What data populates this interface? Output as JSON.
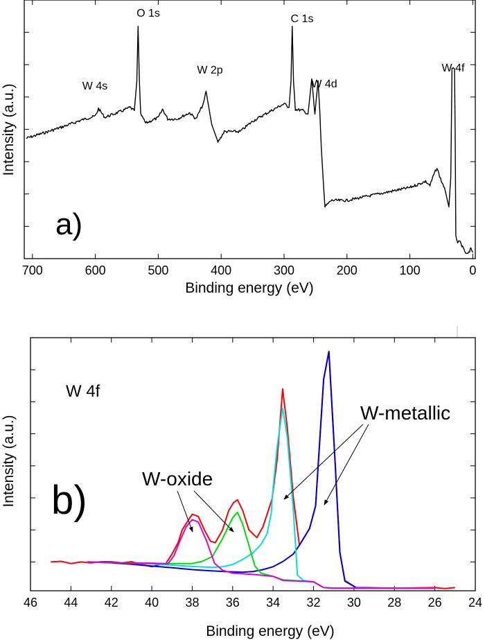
{
  "chart_data": [
    {
      "type": "line",
      "panel_label": "a)",
      "xlabel": "Binding energy (eV)",
      "ylabel": "Intensity (a.u.)",
      "xlim": [
        713,
        -4
      ],
      "x_reversed": true,
      "ylim": [
        0,
        8
      ],
      "xticks": [
        700,
        600,
        500,
        400,
        300,
        200,
        100,
        0
      ],
      "yticks_unlabeled": [
        1,
        2,
        3,
        4,
        5,
        6,
        7
      ],
      "grid": false,
      "line_color": "#000000",
      "annotations": [
        {
          "text": "O 1s",
          "x": 532
        },
        {
          "text": "C 1s",
          "x": 285
        },
        {
          "text": "W 2p",
          "x": 424
        },
        {
          "text": "W 4s",
          "x": 595
        },
        {
          "text": "W 4d",
          "x": 250
        },
        {
          "text": "W 4f",
          "x": 31
        }
      ],
      "series": [
        {
          "x": [
            710,
            680,
            650,
            620,
            600,
            595,
            585,
            560,
            545,
            538,
            534,
            532,
            530,
            528,
            520,
            500,
            493,
            485,
            470,
            450,
            440,
            428,
            424,
            415,
            405,
            395,
            370,
            350,
            320,
            300,
            292,
            289,
            287,
            285,
            282,
            270,
            262,
            256,
            251,
            246,
            243,
            241,
            238,
            235,
            225,
            200,
            150,
            100,
            75,
            68,
            62,
            57,
            50,
            45,
            38,
            35,
            33,
            29,
            28,
            27,
            24,
            20,
            15,
            10,
            5,
            3,
            0
          ],
          "y": [
            3.72,
            3.9,
            4.09,
            4.3,
            4.41,
            4.64,
            4.37,
            4.55,
            4.68,
            4.58,
            5.5,
            7.19,
            5.5,
            4.47,
            4.19,
            4.36,
            4.62,
            4.32,
            4.32,
            4.51,
            4.32,
            4.8,
            5.18,
            4.15,
            3.61,
            3.93,
            3.93,
            4.25,
            4.58,
            4.79,
            4.68,
            5.5,
            7.19,
            5.5,
            4.62,
            4.58,
            4.47,
            5.56,
            4.47,
            5.5,
            4.5,
            3.5,
            2.5,
            1.6,
            1.8,
            1.8,
            2.0,
            2.2,
            2.39,
            2.26,
            2.6,
            2.8,
            2.4,
            2.2,
            1.6,
            2.5,
            5.86,
            5.86,
            4.0,
            0.73,
            0.5,
            0.51,
            0.3,
            0.13,
            0.2,
            0.34,
            0.19
          ]
        }
      ]
    },
    {
      "type": "line",
      "panel_label": "b)",
      "title": "W 4f",
      "xlabel": "Binding energy (eV)",
      "ylabel": "Intensity (a.u.)",
      "xlim": [
        46,
        24
      ],
      "x_reversed": true,
      "ylim": [
        -0.9,
        7.0
      ],
      "xticks": [
        46,
        44,
        42,
        40,
        38,
        36,
        34,
        32,
        30,
        28,
        26,
        24
      ],
      "yticks_unlabeled": [
        0,
        1,
        2,
        3,
        4,
        5,
        6
      ],
      "grid": false,
      "annotations": [
        {
          "text": "W-oxide",
          "points_to": [
            38.0,
            35.8
          ]
        },
        {
          "text": "W-metallic",
          "points_to": [
            33.5,
            31.4
          ]
        }
      ],
      "series": [
        {
          "color": "#ff0000",
          "x": [
            45,
            44.5,
            44,
            43.5,
            43,
            42.5,
            42,
            41.5,
            41,
            40.5,
            40,
            39.6,
            39.3,
            39,
            38.7,
            38.5,
            38.2,
            38,
            37.7,
            37.4,
            37.1,
            36.86,
            36.5,
            36.2,
            35.96,
            35.76,
            35.5,
            35.2,
            34.8,
            34.5,
            34.05,
            33.8,
            33.53,
            33.3,
            33.0,
            32.7,
            32.2,
            31.9,
            31.5,
            31.24,
            30.93,
            30.7,
            30.45,
            29.9,
            28,
            26,
            25.5,
            25
          ],
          "y": [
            0,
            0.02,
            -0.05,
            0,
            -0.03,
            0.01,
            0.01,
            -0.03,
            0.01,
            -0.08,
            -0.15,
            -0.08,
            -0.05,
            0.25,
            0.6,
            1.0,
            1.3,
            1.49,
            1.42,
            1.0,
            0.65,
            0.6,
            1.0,
            1.6,
            1.85,
            1.94,
            1.6,
            1.0,
            0.76,
            1.1,
            1.97,
            3.2,
            5.4,
            4.2,
            2.0,
            0.52,
            1.04,
            1.75,
            5.7,
            6.57,
            3.05,
            0.3,
            -0.58,
            -0.8,
            -0.82,
            -0.8,
            -0.83,
            -0.8
          ]
        },
        {
          "color": "#0000dd",
          "x": [
            43.2,
            42,
            41,
            40,
            39,
            38,
            37,
            36,
            35.5,
            35,
            34.5,
            34,
            33.5,
            33,
            32.7,
            32.2,
            31.9,
            31.5,
            31.24,
            30.93,
            30.7,
            30.45,
            29.9,
            28,
            26
          ],
          "y": [
            0,
            -0.03,
            -0.07,
            -0.13,
            -0.18,
            -0.24,
            -0.28,
            -0.31,
            -0.32,
            -0.3,
            -0.24,
            -0.15,
            0.02,
            0.25,
            0.52,
            1.04,
            1.75,
            5.7,
            6.57,
            3.05,
            0.3,
            -0.6,
            -0.8,
            -0.82,
            -0.82
          ]
        },
        {
          "color": "#00e0e0",
          "x": [
            43.2,
            42,
            41,
            40,
            39,
            38,
            37,
            36.5,
            36,
            35.5,
            35,
            34.6,
            34.3,
            34.1,
            34,
            33.8,
            33.53,
            33.3,
            33.0,
            32.8,
            32.5,
            32,
            31.5,
            31,
            30,
            28,
            26
          ],
          "y": [
            0,
            -0.02,
            -0.04,
            -0.06,
            -0.1,
            -0.14,
            -0.17,
            -0.15,
            -0.08,
            0.08,
            0.28,
            0.55,
            0.88,
            1.5,
            2.33,
            3.6,
            4.8,
            3.9,
            1.6,
            -0.41,
            -0.58,
            -0.62,
            -0.8,
            -0.82,
            -0.82,
            -0.82,
            -0.82
          ]
        },
        {
          "color": "#00dd00",
          "x": [
            43.2,
            42,
            41,
            40,
            39,
            38,
            37.5,
            37,
            36.5,
            36,
            35.76,
            35.5,
            35.2,
            34.9,
            34.6,
            34,
            33.5,
            32.5,
            32,
            31.5,
            31,
            30,
            28,
            26
          ],
          "y": [
            0,
            -0.02,
            -0.03,
            -0.04,
            -0.05,
            -0.05,
            0.02,
            0.17,
            0.73,
            1.38,
            1.55,
            1.17,
            0.52,
            -0.13,
            -0.35,
            -0.45,
            -0.56,
            -0.6,
            -0.62,
            -0.8,
            -0.82,
            -0.82,
            -0.82,
            -0.82
          ]
        },
        {
          "color": "#dd00dd",
          "x": [
            43.2,
            42,
            41,
            40,
            39.2,
            38.9,
            38.6,
            38.3,
            38.0,
            37.7,
            37.3,
            36.9,
            36.5,
            36,
            35,
            34,
            33.5,
            32.5,
            32,
            31.5,
            31,
            30,
            28,
            26
          ],
          "y": [
            0,
            -0.02,
            -0.04,
            -0.04,
            -0.06,
            0.2,
            0.67,
            1.1,
            1.32,
            1.25,
            0.67,
            -0.04,
            -0.26,
            -0.35,
            -0.39,
            -0.45,
            -0.58,
            -0.6,
            -0.62,
            -0.8,
            -0.82,
            -0.82,
            -0.82,
            -0.82
          ]
        }
      ]
    }
  ]
}
